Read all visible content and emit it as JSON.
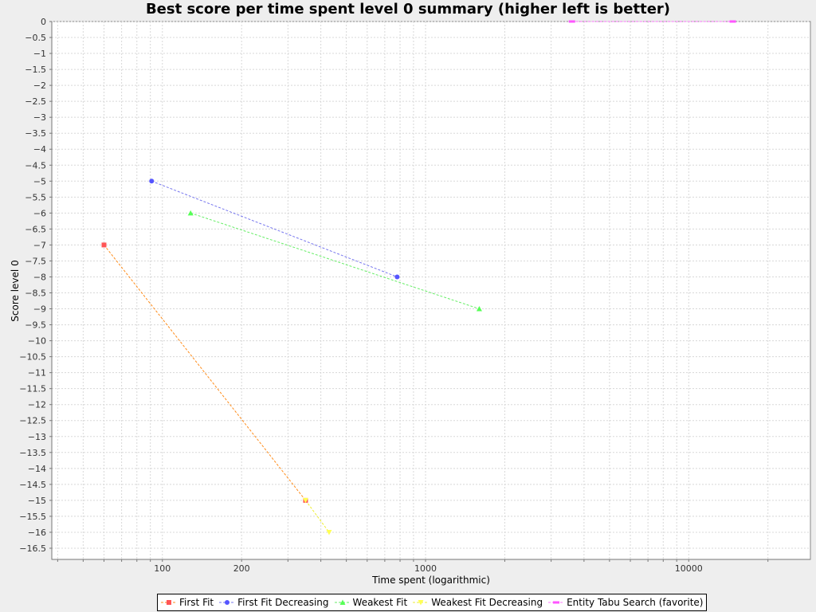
{
  "chart_data": {
    "type": "scatter",
    "title": "Best score per time spent level 0 summary (higher left is better)",
    "xlabel": "Time spent (logarithmic)",
    "ylabel": "Score level 0",
    "xscale": "log",
    "xlim": [
      38,
      29000
    ],
    "ylim": [
      -16.85,
      0
    ],
    "x_tick_labels": [
      {
        "value": 100,
        "label": "100"
      },
      {
        "value": 200,
        "label": "200"
      },
      {
        "value": 1000,
        "label": "1000"
      },
      {
        "value": 10000,
        "label": "10000"
      }
    ],
    "y_ticks": [
      0,
      -0.5,
      -1,
      -1.5,
      -2,
      -2.5,
      -3,
      -3.5,
      -4,
      -4.5,
      -5,
      -5.5,
      -6,
      -6.5,
      -7,
      -7.5,
      -8,
      -8.5,
      -9,
      -9.5,
      -10,
      -10.5,
      -11,
      -11.5,
      -12,
      -12.5,
      -13,
      -13.5,
      -14,
      -14.5,
      -15,
      -15.5,
      -16,
      -16.5
    ],
    "grid": true,
    "legend_position": "bottom",
    "series": [
      {
        "name": "First Fit",
        "color": "#ff5555",
        "marker": "square",
        "points": [
          {
            "x": 60,
            "y": -7
          },
          {
            "x": 350,
            "y": -15
          }
        ]
      },
      {
        "name": "First Fit Decreasing",
        "color": "#5555ff",
        "marker": "circle",
        "points": [
          {
            "x": 91,
            "y": -5
          },
          {
            "x": 780,
            "y": -8
          }
        ]
      },
      {
        "name": "Weakest Fit",
        "color": "#55ff55",
        "marker": "triangle-up",
        "points": [
          {
            "x": 128,
            "y": -6
          },
          {
            "x": 1600,
            "y": -9
          }
        ]
      },
      {
        "name": "Weakest Fit Decreasing",
        "color": "#ffff55",
        "marker": "triangle-down",
        "points": [
          {
            "x": 350,
            "y": -15
          },
          {
            "x": 430,
            "y": -16
          }
        ]
      },
      {
        "name": "Entity Tabu Search (favorite)",
        "color": "#ff55ff",
        "marker": "rect",
        "points": [
          {
            "x": 3600,
            "y": 0
          },
          {
            "x": 14700,
            "y": 0
          }
        ]
      }
    ],
    "connector_colors": [
      "#ff8c1a",
      "#7777ee",
      "#66ee66",
      "#eeee33",
      "#ff77ff"
    ]
  }
}
